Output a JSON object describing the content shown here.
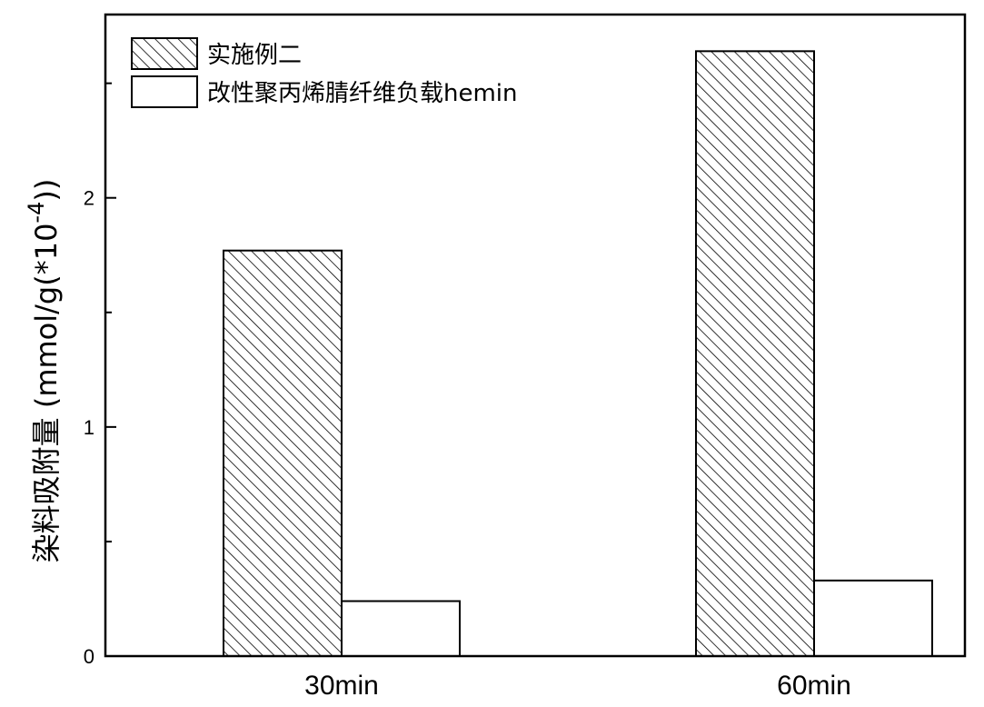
{
  "chart_data": {
    "type": "bar",
    "categories": [
      "30min",
      "60min"
    ],
    "series": [
      {
        "name": "实施例二",
        "values": [
          1.77,
          2.64
        ],
        "fill": "hatch"
      },
      {
        "name": "改性聚丙烯腈纤维负载hemin",
        "values": [
          0.24,
          0.33
        ],
        "fill": "white"
      }
    ],
    "ylabel": "染料吸附量 (mmol/g(*10",
    "ylabel_superscript": "-4",
    "ylabel_suffix": "))",
    "ylim": [
      0,
      2.8
    ],
    "yticks": [
      "0",
      "1",
      "2"
    ],
    "ymajor": [
      0,
      1,
      2
    ],
    "yminor": [
      0.5,
      1.5,
      2.5
    ],
    "legend_position": "top-left",
    "grid": false
  }
}
